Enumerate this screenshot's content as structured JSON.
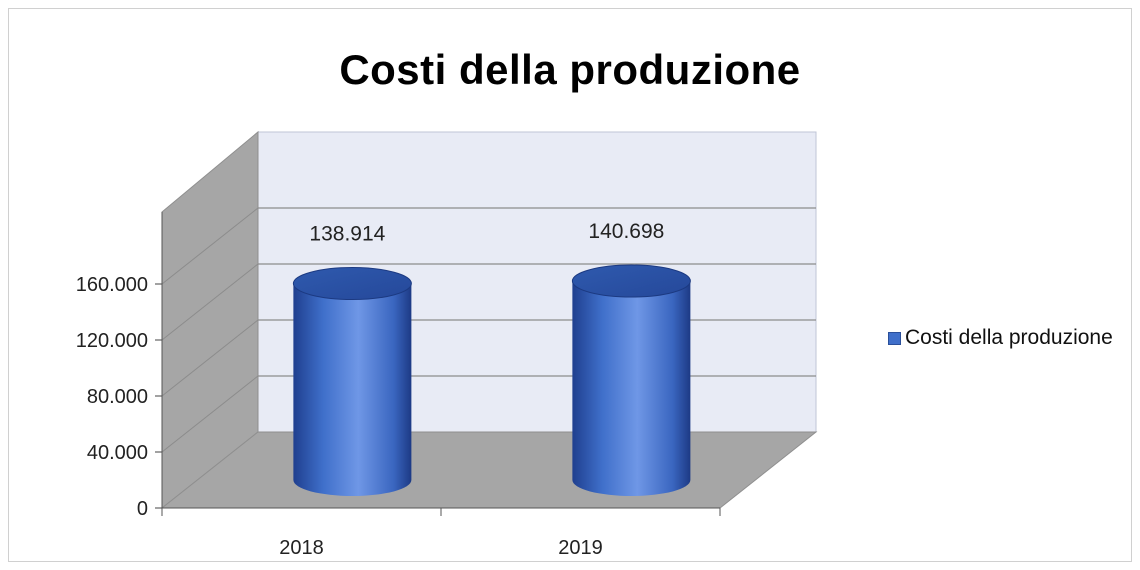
{
  "chart_data": {
    "type": "bar",
    "style": "3d-cylinder",
    "title": "Costi della produzione",
    "categories": [
      "2018",
      "2019"
    ],
    "series": [
      {
        "name": "Costi della produzione",
        "values": [
          138914,
          140698
        ],
        "data_labels": [
          "138.914",
          "140.698"
        ]
      }
    ],
    "yticks": [
      "0",
      "40.000",
      "80.000",
      "120.000",
      "160.000"
    ],
    "ylim": [
      0,
      160000
    ],
    "grid": true,
    "legend": "right",
    "colors": {
      "bar": "#3f6fca",
      "bar_dark": "#1f3f8f",
      "bar_light": "#7aa0ea",
      "back_wall": "#e8ebf5",
      "side_wall": "#a6a6a6",
      "floor": "#a6a6a6"
    }
  }
}
